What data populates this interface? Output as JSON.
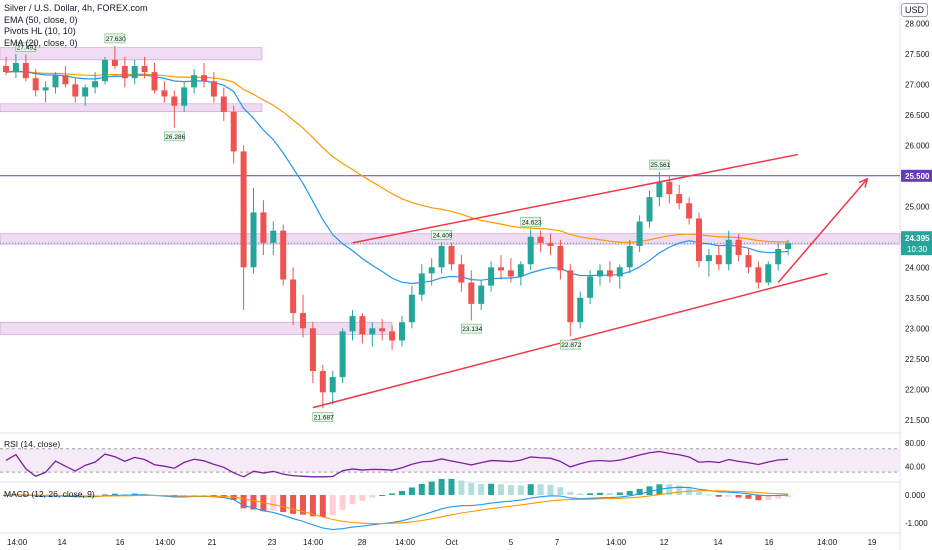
{
  "window": {
    "currency": "USD"
  },
  "legend": {
    "title": "Silver / U.S. Dollar, 4h, FOREX.com",
    "ema50": "EMA (50, close, 0)",
    "pivots": "Pivots HL (10, 10)",
    "ema20": "EMA (20, close, 0)"
  },
  "colors": {
    "up": "#26a69a",
    "down": "#ef5350",
    "ema20": "#2196f3",
    "ema50": "#ff9800",
    "zone": "#e1bee7",
    "hline": "#673ab7",
    "trend": "#f23645",
    "rsi": "#7e1fa0",
    "macd": "#2196f3",
    "signal": "#ff9800"
  },
  "price_axis": {
    "ticks": [
      "28.000",
      "27.500",
      "27.000",
      "26.500",
      "26.000",
      "25.500",
      "25.000",
      "24.500",
      "24.000",
      "23.500",
      "23.000",
      "22.500",
      "22.000",
      "21.500"
    ],
    "tick_values": [
      28.0,
      27.5,
      27.0,
      26.5,
      26.0,
      25.5,
      25.0,
      24.5,
      24.0,
      23.5,
      23.0,
      22.5,
      22.0,
      21.5
    ],
    "last_price": "24.395",
    "countdown": "10:30",
    "level_label": "25.500"
  },
  "time_axis": {
    "labels": [
      "14:00",
      "14",
      "16",
      "14:00",
      "21",
      "23",
      "14:00",
      "28",
      "14:00",
      "Oct",
      "5",
      "7",
      "14:00",
      "12",
      "14",
      "16",
      "14:00",
      "19"
    ]
  },
  "pivot_labels": [
    {
      "text": "27.492",
      "value": 27.492
    },
    {
      "text": "27.630",
      "value": 27.63
    },
    {
      "text": "26.286",
      "value": 26.286
    },
    {
      "text": "24.409",
      "value": 24.409
    },
    {
      "text": "21.687",
      "value": 21.687
    },
    {
      "text": "23.134",
      "value": 23.134
    },
    {
      "text": "24.623",
      "value": 24.623
    },
    {
      "text": "22.872",
      "value": 22.872
    },
    {
      "text": "25.561",
      "value": 25.561
    }
  ],
  "rsi": {
    "label": "RSI (14, close)",
    "ticks": [
      "80.00",
      "40.00"
    ]
  },
  "macd": {
    "label": "MACD (12, 26, close, 9)",
    "ticks": [
      "0.000",
      "-1.000"
    ]
  },
  "chart_data": {
    "type": "candlestick",
    "title": "Silver / U.S. Dollar, 4h, FOREX.com",
    "y_range": [
      21.3,
      28.3
    ],
    "ohlc": [
      [
        27.3,
        27.45,
        27.15,
        27.2
      ],
      [
        27.2,
        27.5,
        27.1,
        27.35
      ],
      [
        27.35,
        27.49,
        27.05,
        27.1
      ],
      [
        27.1,
        27.25,
        26.8,
        26.9
      ],
      [
        26.9,
        27.05,
        26.7,
        26.95
      ],
      [
        26.95,
        27.2,
        26.85,
        27.15
      ],
      [
        27.15,
        27.3,
        26.95,
        27.0
      ],
      [
        27.0,
        27.1,
        26.7,
        26.8
      ],
      [
        26.8,
        27.0,
        26.65,
        26.95
      ],
      [
        26.95,
        27.2,
        26.85,
        27.05
      ],
      [
        27.05,
        27.45,
        27.0,
        27.4
      ],
      [
        27.4,
        27.63,
        27.25,
        27.3
      ],
      [
        27.3,
        27.45,
        26.95,
        27.1
      ],
      [
        27.1,
        27.4,
        27.0,
        27.3
      ],
      [
        27.3,
        27.45,
        27.1,
        27.2
      ],
      [
        27.2,
        27.35,
        26.85,
        26.9
      ],
      [
        26.9,
        27.05,
        26.7,
        26.8
      ],
      [
        26.8,
        26.9,
        26.29,
        26.65
      ],
      [
        26.65,
        27.05,
        26.55,
        26.95
      ],
      [
        26.95,
        27.25,
        26.85,
        27.15
      ],
      [
        27.15,
        27.35,
        26.95,
        27.05
      ],
      [
        27.05,
        27.2,
        26.7,
        26.8
      ],
      [
        26.8,
        26.95,
        26.4,
        26.55
      ],
      [
        26.55,
        26.65,
        25.7,
        25.9
      ],
      [
        25.9,
        26.0,
        23.3,
        24.0
      ],
      [
        24.0,
        25.3,
        23.9,
        24.9
      ],
      [
        24.9,
        25.1,
        24.2,
        24.4
      ],
      [
        24.4,
        24.75,
        24.2,
        24.6
      ],
      [
        24.6,
        24.7,
        23.7,
        23.8
      ],
      [
        23.8,
        24.0,
        23.05,
        23.25
      ],
      [
        23.25,
        23.55,
        22.85,
        23.0
      ],
      [
        23.0,
        23.1,
        22.1,
        22.3
      ],
      [
        22.3,
        22.4,
        21.69,
        21.95
      ],
      [
        21.95,
        22.3,
        21.75,
        22.2
      ],
      [
        22.2,
        23.0,
        22.1,
        22.95
      ],
      [
        22.95,
        23.3,
        22.8,
        23.2
      ],
      [
        23.2,
        23.25,
        22.75,
        22.9
      ],
      [
        22.9,
        23.1,
        22.7,
        23.0
      ],
      [
        23.0,
        23.15,
        22.8,
        22.95
      ],
      [
        22.95,
        23.05,
        22.65,
        22.8
      ],
      [
        22.8,
        23.2,
        22.7,
        23.1
      ],
      [
        23.1,
        23.7,
        23.0,
        23.55
      ],
      [
        23.55,
        24.05,
        23.45,
        23.9
      ],
      [
        23.9,
        24.15,
        23.7,
        24.0
      ],
      [
        24.0,
        24.41,
        23.9,
        24.35
      ],
      [
        24.35,
        24.4,
        23.95,
        24.05
      ],
      [
        24.05,
        24.2,
        23.6,
        23.75
      ],
      [
        23.75,
        23.95,
        23.13,
        23.4
      ],
      [
        23.4,
        23.8,
        23.3,
        23.7
      ],
      [
        23.7,
        24.1,
        23.6,
        24.0
      ],
      [
        24.0,
        24.2,
        23.8,
        23.95
      ],
      [
        23.95,
        24.15,
        23.75,
        23.85
      ],
      [
        23.85,
        24.1,
        23.7,
        24.05
      ],
      [
        24.05,
        24.62,
        23.95,
        24.5
      ],
      [
        24.5,
        24.6,
        24.25,
        24.4
      ],
      [
        24.4,
        24.55,
        24.2,
        24.35
      ],
      [
        24.35,
        24.45,
        23.8,
        23.95
      ],
      [
        23.95,
        24.05,
        22.87,
        23.1
      ],
      [
        23.1,
        23.6,
        23.0,
        23.5
      ],
      [
        23.5,
        23.95,
        23.4,
        23.85
      ],
      [
        23.85,
        24.05,
        23.7,
        23.95
      ],
      [
        23.95,
        24.1,
        23.75,
        23.85
      ],
      [
        23.85,
        24.05,
        23.65,
        24.0
      ],
      [
        24.0,
        24.45,
        23.9,
        24.35
      ],
      [
        24.35,
        24.85,
        24.25,
        24.75
      ],
      [
        24.75,
        25.25,
        24.65,
        25.15
      ],
      [
        25.15,
        25.56,
        25.0,
        25.4
      ],
      [
        25.4,
        25.5,
        25.05,
        25.2
      ],
      [
        25.2,
        25.35,
        24.95,
        25.05
      ],
      [
        25.05,
        25.15,
        24.7,
        24.8
      ],
      [
        24.8,
        24.9,
        24.0,
        24.1
      ],
      [
        24.1,
        24.3,
        23.85,
        24.2
      ],
      [
        24.2,
        24.35,
        23.95,
        24.05
      ],
      [
        24.05,
        24.6,
        23.95,
        24.45
      ],
      [
        24.45,
        24.55,
        24.1,
        24.2
      ],
      [
        24.2,
        24.3,
        23.9,
        24.0
      ],
      [
        24.0,
        24.1,
        23.65,
        23.75
      ],
      [
        23.75,
        24.1,
        23.7,
        24.05
      ],
      [
        24.05,
        24.4,
        23.95,
        24.3
      ],
      [
        24.3,
        24.45,
        24.2,
        24.395
      ]
    ],
    "horizontal_levels": [
      25.5
    ],
    "channel": {
      "upper": [
        [
          35,
          24.4
        ],
        [
          80,
          25.85
        ]
      ],
      "lower": [
        [
          31,
          21.7
        ],
        [
          83,
          23.9
        ]
      ]
    },
    "projection": [
      [
        78,
        23.75
      ],
      [
        87,
        25.45
      ]
    ]
  }
}
